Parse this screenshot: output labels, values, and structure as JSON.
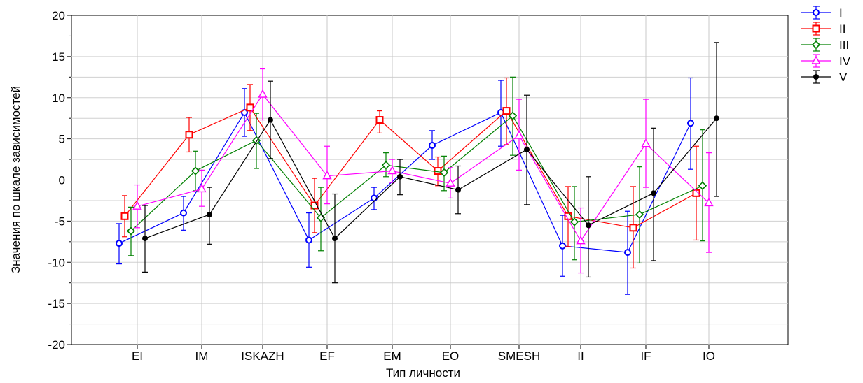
{
  "chart_data": {
    "type": "line",
    "xlabel": "Тип личности",
    "ylabel": "Значения по шкале зависимостей",
    "ylim": [
      -20,
      20
    ],
    "yticks": [
      -20,
      -15,
      -10,
      -5,
      0,
      5,
      10,
      15,
      20
    ],
    "categories": [
      "EI",
      "IM",
      "ISKAZH",
      "EF",
      "EM",
      "EO",
      "SMESH",
      "II",
      "IF",
      "IO"
    ],
    "grid": true,
    "legend_position": "top-right",
    "error_bars": true,
    "series": [
      {
        "name": "I",
        "color": "#0000ff",
        "marker": "circle",
        "values": [
          -7.7,
          -4.0,
          8.2,
          -7.3,
          -2.2,
          4.2,
          8.2,
          -8.0,
          -8.8,
          6.9
        ],
        "low": [
          -10.2,
          -6.1,
          5.3,
          -10.6,
          -3.6,
          2.5,
          4.1,
          -11.7,
          -13.9,
          1.3
        ],
        "high": [
          -5.3,
          -2.0,
          11.1,
          -4.0,
          -0.9,
          6.0,
          12.1,
          -4.3,
          -3.8,
          12.4
        ]
      },
      {
        "name": "II",
        "color": "#ff0000",
        "marker": "square",
        "values": [
          -4.4,
          5.5,
          8.8,
          -3.1,
          7.3,
          1.1,
          8.4,
          -4.4,
          -5.8,
          -1.6
        ],
        "low": [
          -6.9,
          3.4,
          6.0,
          -6.4,
          5.7,
          -0.7,
          4.3,
          -8.1,
          -10.7,
          -7.3
        ],
        "high": [
          -1.9,
          7.6,
          11.6,
          0.2,
          8.4,
          2.8,
          12.4,
          -0.8,
          -0.8,
          4.1
        ]
      },
      {
        "name": "III",
        "color": "#008000",
        "marker": "diamond",
        "values": [
          -6.2,
          1.1,
          4.8,
          -4.6,
          1.8,
          0.9,
          7.8,
          -5.1,
          -4.2,
          -0.7
        ],
        "low": [
          -9.2,
          -1.3,
          1.4,
          -8.6,
          0.4,
          -1.3,
          3.0,
          -9.7,
          -10.1,
          -7.4
        ],
        "high": [
          -3.3,
          3.5,
          8.1,
          -0.9,
          3.3,
          2.9,
          12.5,
          -0.8,
          1.6,
          6.1
        ]
      },
      {
        "name": "IV",
        "color": "#ff00ff",
        "marker": "triangle",
        "values": [
          -3.2,
          -1.1,
          10.4,
          0.5,
          1.1,
          -0.4,
          5.4,
          -7.4,
          4.4,
          -2.8
        ],
        "low": [
          -5.8,
          -3.2,
          7.3,
          -2.9,
          -0.3,
          -2.2,
          1.2,
          -11.3,
          -0.9,
          -8.8
        ],
        "high": [
          -0.6,
          1.2,
          13.5,
          4.1,
          2.5,
          1.5,
          9.8,
          -3.4,
          9.8,
          3.3
        ]
      },
      {
        "name": "V",
        "color": "#000000",
        "marker": "dot",
        "values": [
          -7.1,
          -4.2,
          7.3,
          -7.1,
          0.4,
          -1.2,
          3.7,
          -5.5,
          -1.6,
          7.5
        ],
        "low": [
          -11.2,
          -7.8,
          2.6,
          -12.5,
          -1.8,
          -4.1,
          -3.0,
          -11.8,
          -9.8,
          -2.0
        ],
        "high": [
          -3.1,
          -0.9,
          12.0,
          -1.7,
          2.5,
          1.7,
          10.3,
          0.4,
          6.3,
          16.7
        ]
      }
    ]
  }
}
